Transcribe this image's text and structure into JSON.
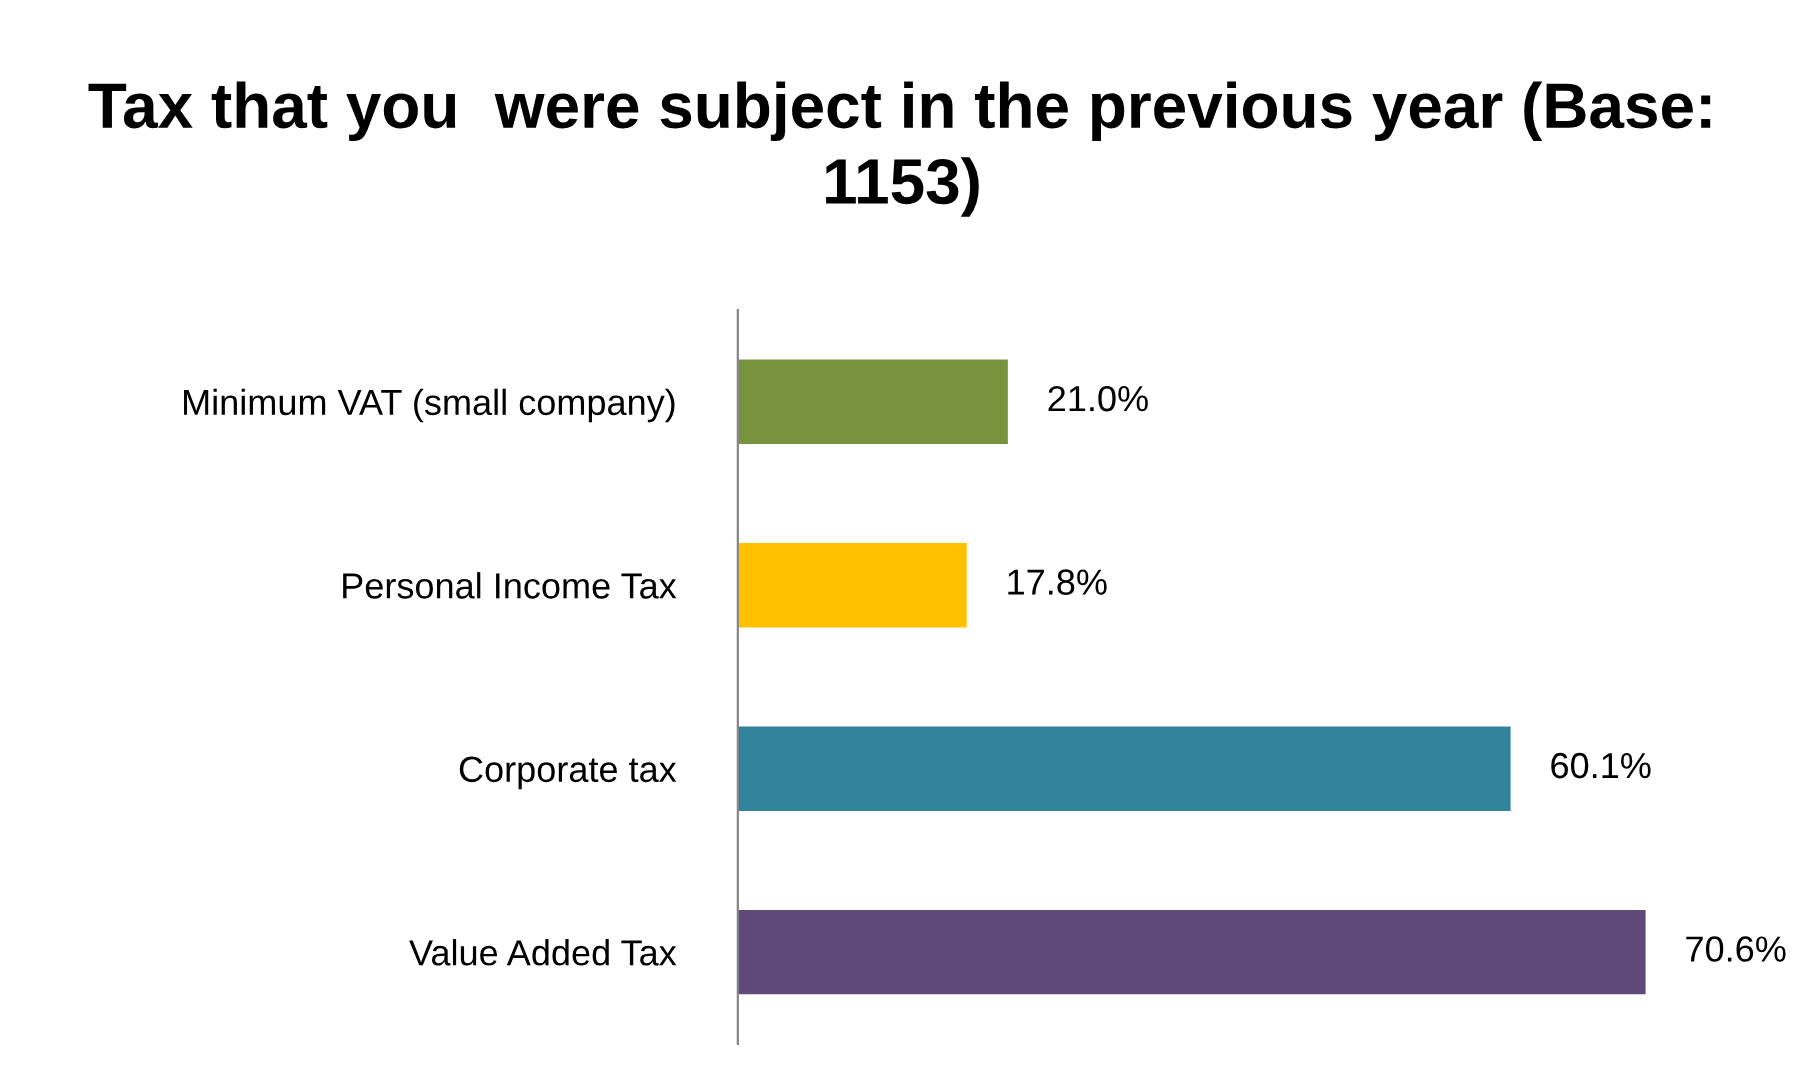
{
  "chart_data": {
    "type": "bar",
    "orientation": "horizontal",
    "title": "Tax that you  were subject in the previous year (Base: 1153)",
    "categories": [
      "Minimum VAT (small company)",
      "Personal Income Tax",
      "Corporate tax",
      "Value Added Tax"
    ],
    "values": [
      21.0,
      17.8,
      60.1,
      70.6
    ],
    "colors": [
      "#77933c",
      "#ffc000",
      "#31849b",
      "#604a7b"
    ],
    "value_labels": [
      "21.0%",
      "17.8%",
      "60.1%",
      "70.6%"
    ],
    "grid": false,
    "legend": false
  }
}
